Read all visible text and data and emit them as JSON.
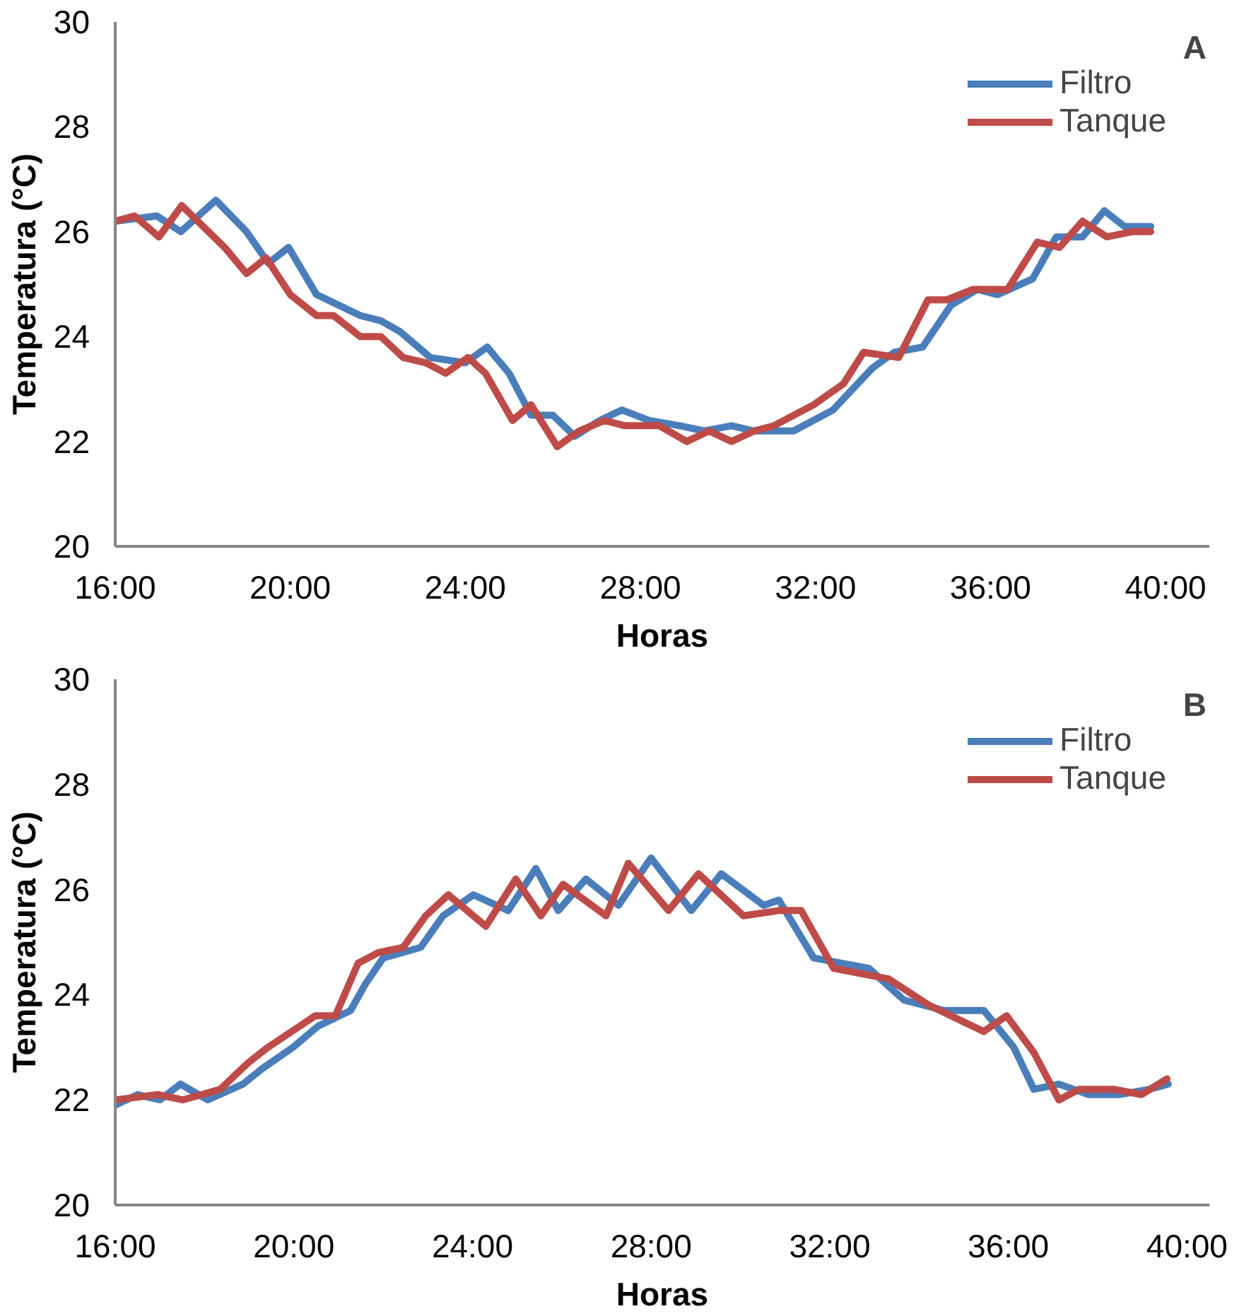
{
  "chart_data": [
    {
      "type": "line",
      "xlabel": "Horas",
      "ylabel": "Temperatura (°C)",
      "annotations": [
        "A"
      ],
      "legend": "top right",
      "grid": false,
      "marker": "none",
      "line_style": "solid",
      "xlim": [
        16,
        41
      ],
      "ylim": [
        20,
        30
      ],
      "xticks": [
        {
          "value": 16,
          "label": "16:00"
        },
        {
          "value": 20,
          "label": "20:00"
        },
        {
          "value": 24,
          "label": "24:00"
        },
        {
          "value": 28,
          "label": "28:00"
        },
        {
          "value": 32,
          "label": "32:00"
        },
        {
          "value": 36,
          "label": "36:00"
        },
        {
          "value": 40,
          "label": "40:00"
        }
      ],
      "yticks": [
        20,
        22,
        24,
        26,
        28,
        30
      ],
      "series": [
        {
          "name": "Filtro",
          "color": "#4a7ebb",
          "x": [
            16.0,
            16.95,
            17.5,
            18.3,
            19.0,
            19.5,
            19.96,
            20.6,
            21.6,
            22.07,
            22.5,
            23.2,
            24.0,
            24.5,
            25.0,
            25.5,
            26.0,
            26.5,
            27.07,
            27.58,
            28.2,
            28.9,
            29.46,
            30.08,
            30.6,
            31.5,
            32.4,
            33.3,
            33.8,
            34.45,
            35.1,
            35.7,
            36.16,
            36.96,
            37.5,
            38.1,
            38.6,
            39.06,
            39.66
          ],
          "values": [
            26.2,
            26.3,
            26.0,
            26.6,
            26.0,
            25.4,
            25.7,
            24.8,
            24.4,
            24.3,
            24.1,
            23.6,
            23.5,
            23.8,
            23.3,
            22.5,
            22.5,
            22.1,
            22.4,
            22.6,
            22.4,
            22.3,
            22.2,
            22.3,
            22.2,
            22.2,
            22.6,
            23.4,
            23.7,
            23.8,
            24.6,
            24.9,
            24.8,
            25.1,
            25.9,
            25.9,
            26.4,
            26.1,
            26.1
          ]
        },
        {
          "name": "Tanque",
          "color": "#be4b48",
          "x": [
            16.0,
            16.44,
            17.0,
            17.52,
            18.5,
            19.0,
            19.45,
            20.0,
            20.6,
            20.99,
            21.6,
            22.07,
            22.58,
            23.1,
            23.55,
            24.06,
            24.46,
            25.08,
            25.5,
            26.1,
            26.6,
            27.18,
            27.64,
            28.43,
            29.06,
            29.57,
            30.08,
            30.6,
            31.05,
            31.96,
            32.64,
            33.1,
            33.9,
            34.57,
            35.0,
            35.6,
            36.39,
            37.07,
            37.58,
            38.1,
            38.66,
            39.23,
            39.66
          ],
          "values": [
            26.2,
            26.3,
            25.9,
            26.5,
            25.7,
            25.2,
            25.5,
            24.8,
            24.4,
            24.4,
            24.0,
            24.0,
            23.6,
            23.5,
            23.3,
            23.6,
            23.3,
            22.4,
            22.7,
            21.9,
            22.2,
            22.4,
            22.3,
            22.3,
            22.0,
            22.2,
            22.0,
            22.2,
            22.3,
            22.7,
            23.1,
            23.7,
            23.6,
            24.7,
            24.7,
            24.9,
            24.9,
            25.8,
            25.7,
            26.2,
            25.9,
            26.0,
            26.0
          ]
        }
      ]
    },
    {
      "type": "line",
      "xlabel": "Horas",
      "ylabel": "Temperatura (°C)",
      "annotations": [
        "B"
      ],
      "legend": "top right",
      "grid": false,
      "marker": "none",
      "line_style": "solid",
      "xlim": [
        16,
        40.5
      ],
      "ylim": [
        20,
        30
      ],
      "xticks": [
        {
          "value": 16,
          "label": "16:00"
        },
        {
          "value": 20,
          "label": "20:00"
        },
        {
          "value": 24,
          "label": "24:00"
        },
        {
          "value": 28,
          "label": "28:00"
        },
        {
          "value": 32,
          "label": "32:00"
        },
        {
          "value": 36,
          "label": "36:00"
        },
        {
          "value": 40,
          "label": "40:00"
        }
      ],
      "yticks": [
        20,
        22,
        24,
        26,
        28,
        30
      ],
      "series": [
        {
          "name": "Filtro",
          "color": "#4a7ebb",
          "x": [
            16.0,
            16.5,
            17.0,
            17.46,
            18.07,
            18.86,
            19.3,
            19.98,
            20.54,
            21.27,
            21.6,
            22.0,
            22.84,
            23.34,
            24.02,
            24.8,
            25.42,
            25.92,
            26.54,
            27.27,
            28.0,
            28.9,
            29.57,
            30.52,
            30.86,
            31.64,
            32.88,
            33.66,
            34.56,
            35.45,
            36.12,
            36.57,
            37.13,
            37.8,
            38.48,
            39.15,
            39.58
          ],
          "values": [
            21.9,
            22.1,
            22.0,
            22.3,
            22.0,
            22.3,
            22.6,
            23.0,
            23.4,
            23.7,
            24.2,
            24.7,
            24.9,
            25.5,
            25.9,
            25.6,
            26.4,
            25.6,
            26.2,
            25.7,
            26.6,
            25.6,
            26.3,
            25.7,
            25.8,
            24.7,
            24.5,
            23.9,
            23.7,
            23.7,
            23.0,
            22.2,
            22.3,
            22.1,
            22.1,
            22.2,
            22.3
          ]
        },
        {
          "name": "Tanque",
          "color": "#be4b48",
          "x": [
            16.0,
            16.95,
            17.51,
            18.35,
            18.97,
            19.42,
            20.48,
            20.93,
            21.44,
            21.89,
            22.45,
            22.95,
            23.46,
            24.3,
            24.97,
            25.53,
            26.03,
            26.99,
            27.49,
            28.39,
            29.06,
            30.07,
            30.86,
            31.36,
            32.09,
            33.32,
            34.22,
            35.45,
            35.96,
            36.57,
            37.13,
            37.58,
            38.37,
            38.98,
            39.55
          ],
          "values": [
            22.0,
            22.1,
            22.0,
            22.2,
            22.7,
            23.0,
            23.6,
            23.6,
            24.6,
            24.8,
            24.9,
            25.5,
            25.9,
            25.3,
            26.2,
            25.5,
            26.1,
            25.5,
            26.5,
            25.6,
            26.3,
            25.5,
            25.6,
            25.6,
            24.5,
            24.3,
            23.8,
            23.3,
            23.6,
            22.9,
            22.0,
            22.2,
            22.2,
            22.1,
            22.4
          ]
        }
      ]
    }
  ]
}
